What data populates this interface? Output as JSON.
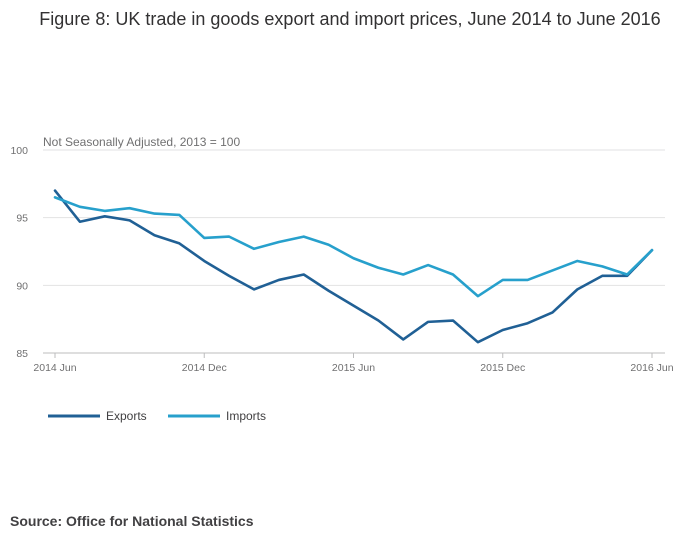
{
  "chart_data": {
    "type": "line",
    "title": "Figure 8: UK trade in goods export and import prices, June 2014 to June 2016",
    "subtitle": "Not Seasonally Adjusted, 2013 = 100",
    "source": "Source: Office for National Statistics",
    "x": [
      "2014 Jun",
      "2014 Jul",
      "2014 Aug",
      "2014 Sep",
      "2014 Oct",
      "2014 Nov",
      "2014 Dec",
      "2015 Jan",
      "2015 Feb",
      "2015 Mar",
      "2015 Apr",
      "2015 May",
      "2015 Jun",
      "2015 Jul",
      "2015 Aug",
      "2015 Sep",
      "2015 Oct",
      "2015 Nov",
      "2015 Dec",
      "2016 Jan",
      "2016 Feb",
      "2016 Mar",
      "2016 Apr",
      "2016 May",
      "2016 Jun"
    ],
    "x_ticks": [
      {
        "index": 0,
        "label": "2014 Jun"
      },
      {
        "index": 6,
        "label": "2014 Dec"
      },
      {
        "index": 12,
        "label": "2015 Jun"
      },
      {
        "index": 18,
        "label": "2015 Dec"
      },
      {
        "index": 24,
        "label": "2016 Jun"
      }
    ],
    "y_ticks": [
      85,
      90,
      95,
      100
    ],
    "ylim": [
      85,
      100
    ],
    "grid": true,
    "legend": "bottom-left",
    "series": [
      {
        "name": "Exports",
        "color": "#206095",
        "values": [
          97.0,
          94.7,
          95.1,
          94.8,
          93.7,
          93.1,
          91.8,
          90.7,
          89.7,
          90.4,
          90.8,
          89.6,
          88.5,
          87.4,
          86.0,
          87.3,
          87.4,
          85.8,
          86.7,
          87.2,
          88.0,
          89.7,
          90.7,
          90.7,
          92.6
        ]
      },
      {
        "name": "Imports",
        "color": "#27a0cc",
        "values": [
          96.5,
          95.8,
          95.5,
          95.7,
          95.3,
          95.2,
          93.5,
          93.6,
          92.7,
          93.2,
          93.6,
          93.0,
          92.0,
          91.3,
          90.8,
          91.5,
          90.8,
          89.2,
          90.4,
          90.4,
          91.1,
          91.8,
          91.4,
          90.8,
          92.6
        ]
      }
    ]
  }
}
